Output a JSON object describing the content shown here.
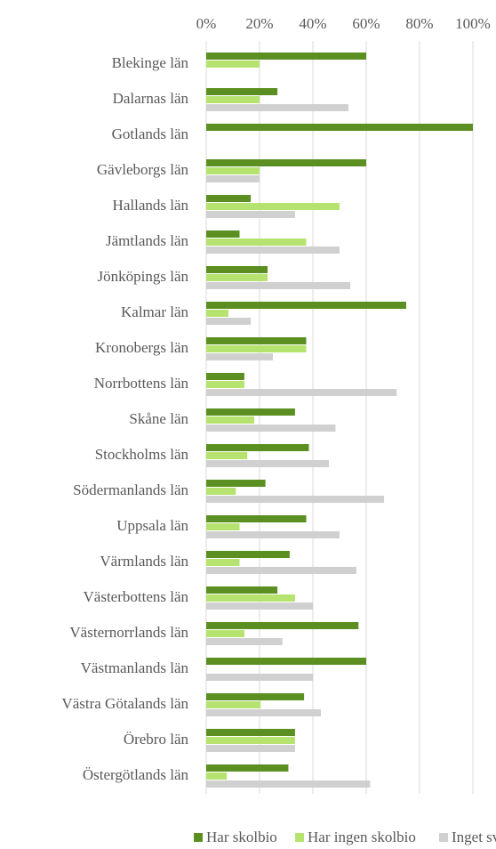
{
  "chart_data": {
    "type": "bar",
    "orientation": "horizontal",
    "categories": [
      "Blekinge län",
      "Dalarnas län",
      "Gotlands län",
      "Gävleborgs län",
      "Hallands län",
      "Jämtlands län",
      "Jönköpings län",
      "Kalmar län",
      "Kronobergs län",
      "Norrbottens län",
      "Skåne län",
      "Stockholms län",
      "Södermanlands län",
      "Uppsala län",
      "Värmlands län",
      "Västerbottens län",
      "Västernorrlands län",
      "Västmanlands län",
      "Västra Götalands län",
      "Örebro län",
      "Östergötlands län"
    ],
    "series": [
      {
        "name": "Har skolbio",
        "color": "#5b8f22",
        "values": [
          60,
          26.7,
          100,
          60,
          16.7,
          12.5,
          23,
          75,
          37.5,
          14.3,
          33.3,
          38.5,
          22.2,
          37.5,
          31.3,
          26.7,
          57.1,
          60,
          36.7,
          33.3,
          30.8
        ]
      },
      {
        "name": "Har ingen skolbio",
        "color": "#b6e36f",
        "values": [
          20,
          20,
          0,
          20,
          50,
          37.5,
          23,
          8.3,
          37.5,
          14.3,
          18,
          15.4,
          11.1,
          12.5,
          12.5,
          33.3,
          14.3,
          0,
          20.4,
          33.3,
          7.7
        ]
      },
      {
        "name": "Inget svar",
        "color": "#d0d0d0",
        "values": [
          0,
          53.3,
          0,
          20,
          33.3,
          50,
          54,
          16.7,
          25,
          71.4,
          48.5,
          46,
          66.7,
          50,
          56.3,
          40,
          28.6,
          40,
          43,
          33.3,
          61.5
        ]
      }
    ],
    "xlim": [
      0,
      100
    ],
    "xticks": [
      {
        "value": 0,
        "label": "0%"
      },
      {
        "value": 20,
        "label": "20%"
      },
      {
        "value": 40,
        "label": "40%"
      },
      {
        "value": 60,
        "label": "60%"
      },
      {
        "value": 80,
        "label": "80%"
      },
      {
        "value": 100,
        "label": "100%"
      }
    ],
    "grid": true,
    "legend": "bottom"
  }
}
